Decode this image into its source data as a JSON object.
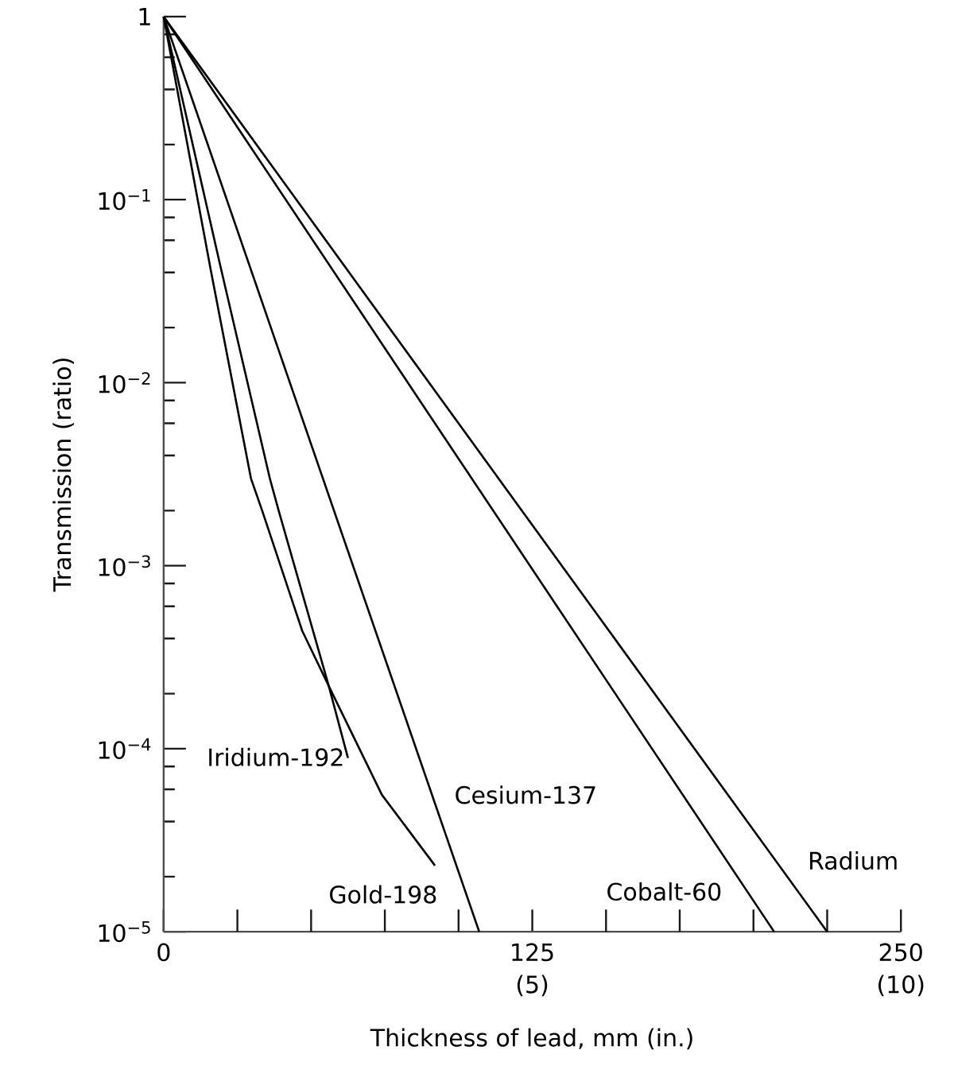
{
  "chart_data": {
    "type": "line",
    "xlabel": "Thickness of lead, mm (in.)",
    "ylabel": "Transmission (ratio)",
    "log": "y",
    "marker": "none",
    "line_style": "solid",
    "xlim": [
      0,
      250
    ],
    "xticks": [
      0,
      {
        "value": 25,
        "label": null
      },
      {
        "value": 50,
        "label": null
      },
      {
        "value": 75,
        "label": null
      },
      {
        "value": 100,
        "label": null
      },
      125,
      {
        "value": 150,
        "label": null
      },
      {
        "value": 175,
        "label": null
      },
      {
        "value": 200,
        "label": null
      },
      {
        "value": 225,
        "label": null
      },
      250
    ],
    "x2lim": [
      0,
      10
    ],
    "x2ticks": [
      {
        "value": 5,
        "label": "(5)"
      },
      {
        "value": 10,
        "label": "(10)"
      }
    ],
    "ylim": [
      1e-05,
      1
    ],
    "yticks": [
      {
        "value": 1e-05,
        "label": "10$^{−5}$"
      },
      {
        "value": 0.0001,
        "label": "10$^{−4}$"
      },
      {
        "value": 0.001,
        "label": "10$^{−3}$"
      },
      {
        "value": 0.01,
        "label": "10$^{−2}$"
      },
      {
        "value": 0.1,
        "label": "10$^{−1}$"
      },
      1,
      {
        "value": 2e-05,
        "label": null
      },
      {
        "value": 4e-05,
        "label": null
      },
      {
        "value": 6e-05,
        "label": null
      },
      {
        "value": 8e-05,
        "label": null
      },
      {
        "value": 0.0002,
        "label": null
      },
      {
        "value": 0.0004,
        "label": null
      },
      {
        "value": 0.0006,
        "label": null
      },
      {
        "value": 0.0008,
        "label": null
      },
      {
        "value": 0.002,
        "label": null
      },
      {
        "value": 0.004,
        "label": null
      },
      {
        "value": 0.006,
        "label": null
      },
      {
        "value": 0.008,
        "label": null
      },
      {
        "value": 0.02,
        "label": null
      },
      {
        "value": 0.04,
        "label": null
      },
      {
        "value": 0.06,
        "label": null
      },
      {
        "value": 0.08,
        "label": null
      },
      {
        "value": 0.2,
        "label": null
      },
      {
        "value": 0.4,
        "label": null
      },
      {
        "value": 0.6,
        "label": null
      },
      {
        "value": 0.8,
        "label": null
      }
    ],
    "series": [
      {
        "name": "Iridium-192",
        "color": "#000000",
        "x": [
          0,
          19,
          36,
          39,
          56,
          62.5
        ],
        "values": [
          1,
          0.045,
          0.003,
          0.002,
          0.00022,
          8.9e-05
        ]
      },
      {
        "name": "Gold-198",
        "color": "#000000",
        "x": [
          0,
          16,
          29.6,
          33.4,
          47,
          56,
          74,
          92
        ],
        "values": [
          1,
          0.041,
          0.003,
          0.002,
          0.00044,
          0.00022,
          5.6e-05,
          2.3e-05
        ]
      },
      {
        "name": "Cesium-137",
        "color": "#000000",
        "x": [
          0,
          107
        ],
        "values": [
          1,
          1e-05
        ]
      },
      {
        "name": "Cobalt-60",
        "color": "#000000",
        "x": [
          0,
          207
        ],
        "values": [
          1,
          1e-05
        ]
      },
      {
        "name": "Radium",
        "color": "#000000",
        "x": [
          0,
          225
        ],
        "values": [
          1,
          1e-05
        ]
      }
    ]
  }
}
